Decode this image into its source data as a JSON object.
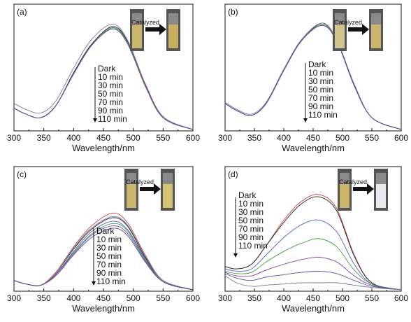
{
  "chart_data": [
    {
      "type": "line",
      "panel_label": "(a)",
      "xlabel": "Wavelength/nm",
      "ylabel": "",
      "xlim": [
        300,
        600
      ],
      "xticks": [
        "300",
        "350",
        "400",
        "450",
        "500",
        "550",
        "600"
      ],
      "legend_title": "Dark",
      "legend_entries": [
        "10 min",
        "30 min",
        "50 min",
        "70 min",
        "90 min",
        "110 min"
      ],
      "inset": {
        "arrow_text": "Catalyzed",
        "before_color": "#c9b46a",
        "after_color": "#c7ad5c"
      },
      "x": [
        300,
        320,
        345,
        370,
        400,
        430,
        465,
        490,
        520,
        550,
        600
      ],
      "series": [
        {
          "color": "#222222",
          "values": [
            0.18,
            0.13,
            0.1,
            0.2,
            0.48,
            0.72,
            0.87,
            0.75,
            0.38,
            0.1,
            0.0
          ]
        },
        {
          "color": "#7a7a9a",
          "values": [
            0.22,
            0.17,
            0.14,
            0.24,
            0.52,
            0.76,
            0.89,
            0.76,
            0.39,
            0.11,
            0.0
          ]
        },
        {
          "color": "#d04040",
          "values": [
            0.18,
            0.13,
            0.1,
            0.2,
            0.47,
            0.71,
            0.86,
            0.74,
            0.38,
            0.1,
            0.0
          ]
        },
        {
          "color": "#4060c0",
          "values": [
            0.18,
            0.13,
            0.1,
            0.2,
            0.47,
            0.71,
            0.86,
            0.74,
            0.37,
            0.1,
            0.0
          ]
        },
        {
          "color": "#40a040",
          "values": [
            0.18,
            0.13,
            0.1,
            0.2,
            0.47,
            0.71,
            0.86,
            0.74,
            0.37,
            0.1,
            0.0
          ]
        },
        {
          "color": "#8040a0",
          "values": [
            0.18,
            0.13,
            0.1,
            0.2,
            0.47,
            0.71,
            0.85,
            0.73,
            0.37,
            0.1,
            0.0
          ]
        },
        {
          "color": "#5050a0",
          "values": [
            0.18,
            0.13,
            0.1,
            0.2,
            0.47,
            0.71,
            0.85,
            0.73,
            0.37,
            0.1,
            0.0
          ]
        }
      ]
    },
    {
      "type": "line",
      "panel_label": "(b)",
      "xlabel": "Wavelength/nm",
      "ylabel": "",
      "xlim": [
        300,
        600
      ],
      "xticks": [
        "300",
        "350",
        "400",
        "450",
        "500",
        "550",
        "600"
      ],
      "legend_title": "Dark",
      "legend_entries": [
        "10 min",
        "30 min",
        "50 min",
        "70 min",
        "90 min",
        "110 min"
      ],
      "inset": {
        "arrow_text": "Catalyzed",
        "before_color": "#d1c48a",
        "after_color": "#ccb56a"
      },
      "x": [
        300,
        320,
        345,
        370,
        400,
        430,
        465,
        490,
        520,
        550,
        600
      ],
      "series": [
        {
          "color": "#222222",
          "values": [
            0.22,
            0.16,
            0.12,
            0.22,
            0.5,
            0.75,
            0.9,
            0.76,
            0.38,
            0.1,
            0.0
          ]
        },
        {
          "color": "#7a7a9a",
          "values": [
            0.23,
            0.17,
            0.13,
            0.23,
            0.51,
            0.76,
            0.9,
            0.76,
            0.38,
            0.1,
            0.0
          ]
        },
        {
          "color": "#d04040",
          "values": [
            0.22,
            0.16,
            0.12,
            0.22,
            0.5,
            0.75,
            0.89,
            0.75,
            0.38,
            0.1,
            0.0
          ]
        },
        {
          "color": "#4060c0",
          "values": [
            0.22,
            0.16,
            0.12,
            0.22,
            0.5,
            0.75,
            0.89,
            0.75,
            0.38,
            0.1,
            0.0
          ]
        },
        {
          "color": "#40a040",
          "values": [
            0.22,
            0.16,
            0.12,
            0.22,
            0.5,
            0.75,
            0.89,
            0.75,
            0.37,
            0.1,
            0.0
          ]
        },
        {
          "color": "#8040a0",
          "values": [
            0.22,
            0.16,
            0.12,
            0.22,
            0.5,
            0.75,
            0.88,
            0.75,
            0.37,
            0.1,
            0.0
          ]
        },
        {
          "color": "#5050a0",
          "values": [
            0.22,
            0.16,
            0.12,
            0.22,
            0.5,
            0.75,
            0.88,
            0.75,
            0.37,
            0.1,
            0.0
          ]
        }
      ]
    },
    {
      "type": "line",
      "panel_label": "(c)",
      "xlabel": "Wavelength/nm",
      "ylabel": "",
      "xlim": [
        300,
        600
      ],
      "xticks": [
        "300",
        "350",
        "400",
        "450",
        "500",
        "550",
        "600"
      ],
      "legend_title": "Dark",
      "legend_entries": [
        "10 min",
        "30 min",
        "50 min",
        "70 min",
        "90 min",
        "110 min"
      ],
      "inset": {
        "arrow_text": "Catalyzed",
        "before_color": "#c9b46a",
        "after_color": "#d4c173"
      },
      "x": [
        300,
        320,
        345,
        370,
        400,
        430,
        465,
        490,
        520,
        550,
        600
      ],
      "series": [
        {
          "color": "#222222",
          "values": [
            0.08,
            0.05,
            0.04,
            0.14,
            0.35,
            0.52,
            0.62,
            0.55,
            0.28,
            0.08,
            0.0
          ]
        },
        {
          "color": "#d04040",
          "values": [
            0.08,
            0.05,
            0.04,
            0.15,
            0.37,
            0.55,
            0.66,
            0.58,
            0.3,
            0.08,
            0.0
          ]
        },
        {
          "color": "#7a7a9a",
          "values": [
            0.08,
            0.05,
            0.04,
            0.14,
            0.36,
            0.53,
            0.63,
            0.56,
            0.29,
            0.08,
            0.0
          ]
        },
        {
          "color": "#4060c0",
          "values": [
            0.08,
            0.05,
            0.04,
            0.13,
            0.33,
            0.5,
            0.59,
            0.52,
            0.27,
            0.07,
            0.0
          ]
        },
        {
          "color": "#40a040",
          "values": [
            0.08,
            0.05,
            0.04,
            0.13,
            0.32,
            0.48,
            0.57,
            0.51,
            0.26,
            0.07,
            0.0
          ]
        },
        {
          "color": "#8040a0",
          "values": [
            0.08,
            0.05,
            0.04,
            0.13,
            0.31,
            0.47,
            0.55,
            0.49,
            0.25,
            0.07,
            0.0
          ]
        },
        {
          "color": "#5050a0",
          "values": [
            0.08,
            0.05,
            0.04,
            0.12,
            0.3,
            0.45,
            0.53,
            0.47,
            0.24,
            0.07,
            0.0
          ]
        }
      ]
    },
    {
      "type": "line",
      "panel_label": "(d)",
      "xlabel": "Wavelength/nm",
      "ylabel": "",
      "xlim": [
        300,
        600
      ],
      "xticks": [
        "300",
        "350",
        "400",
        "450",
        "500",
        "550",
        "600"
      ],
      "legend_title": "Dark",
      "legend_entries": [
        "10 min",
        "30 min",
        "50 min",
        "70 min",
        "90 min",
        "110 min"
      ],
      "inset": {
        "arrow_text": "Catalyzed",
        "before_color": "#c9b46a",
        "after_color": "#e8e8ee"
      },
      "x": [
        300,
        320,
        345,
        370,
        400,
        430,
        460,
        490,
        520,
        550,
        600
      ],
      "series": [
        {
          "color": "#d04040",
          "values": [
            0.2,
            0.18,
            0.22,
            0.38,
            0.6,
            0.76,
            0.82,
            0.7,
            0.3,
            0.06,
            0.0
          ]
        },
        {
          "color": "#222222",
          "values": [
            0.2,
            0.18,
            0.22,
            0.38,
            0.58,
            0.74,
            0.8,
            0.68,
            0.29,
            0.06,
            0.0
          ]
        },
        {
          "color": "#4060c0",
          "values": [
            0.18,
            0.16,
            0.18,
            0.3,
            0.45,
            0.56,
            0.6,
            0.5,
            0.22,
            0.05,
            0.0
          ]
        },
        {
          "color": "#40a040",
          "values": [
            0.16,
            0.14,
            0.15,
            0.24,
            0.33,
            0.4,
            0.44,
            0.37,
            0.17,
            0.05,
            0.0
          ]
        },
        {
          "color": "#8040a0",
          "values": [
            0.15,
            0.12,
            0.12,
            0.17,
            0.22,
            0.26,
            0.28,
            0.24,
            0.12,
            0.04,
            0.0
          ]
        },
        {
          "color": "#5050a0",
          "values": [
            0.14,
            0.1,
            0.08,
            0.11,
            0.13,
            0.15,
            0.16,
            0.14,
            0.08,
            0.03,
            0.0
          ]
        },
        {
          "color": "#7a7a9a",
          "values": [
            0.12,
            0.06,
            0.03,
            0.04,
            0.05,
            0.06,
            0.06,
            0.06,
            0.04,
            0.02,
            0.0
          ]
        }
      ]
    }
  ]
}
